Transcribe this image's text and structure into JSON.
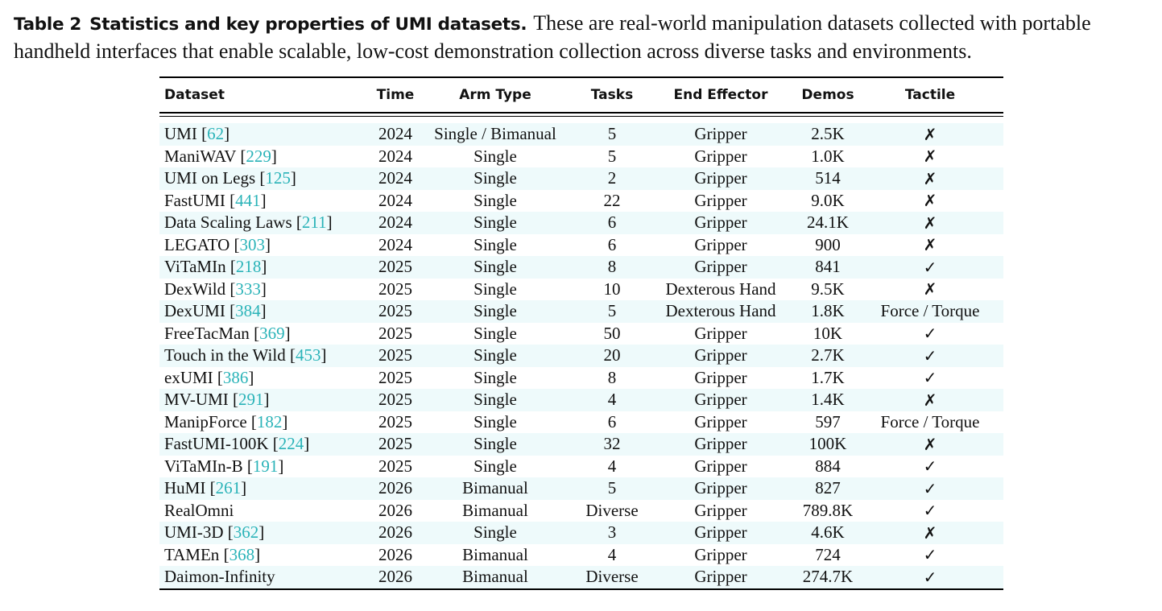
{
  "caption": {
    "label": "Table 2",
    "title": "Statistics and key properties of UMI datasets.",
    "text": "These are real-world manipulation datasets collected with portable handheld interfaces that enable scalable, low-cost demonstration collection across diverse tasks and environments."
  },
  "table": {
    "headers": {
      "dataset": "Dataset",
      "time": "Time",
      "arm_type": "Arm Type",
      "tasks": "Tasks",
      "end_effector": "End Effector",
      "demos": "Demos",
      "tactile": "Tactile"
    },
    "rows": [
      {
        "name": "UMI",
        "ref": "62",
        "time": "2024",
        "arm": "Single / Bimanual",
        "tasks": "5",
        "ee": "Gripper",
        "demos": "2.5K",
        "tactile": "✗"
      },
      {
        "name": "ManiWAV",
        "ref": "229",
        "time": "2024",
        "arm": "Single",
        "tasks": "5",
        "ee": "Gripper",
        "demos": "1.0K",
        "tactile": "✗"
      },
      {
        "name": "UMI on Legs",
        "ref": "125",
        "time": "2024",
        "arm": "Single",
        "tasks": "2",
        "ee": "Gripper",
        "demos": "514",
        "tactile": "✗"
      },
      {
        "name": "FastUMI",
        "ref": "441",
        "time": "2024",
        "arm": "Single",
        "tasks": "22",
        "ee": "Gripper",
        "demos": "9.0K",
        "tactile": "✗"
      },
      {
        "name": "Data Scaling Laws",
        "ref": "211",
        "time": "2024",
        "arm": "Single",
        "tasks": "6",
        "ee": "Gripper",
        "demos": "24.1K",
        "tactile": "✗"
      },
      {
        "name": "LEGATO",
        "ref": "303",
        "time": "2024",
        "arm": "Single",
        "tasks": "6",
        "ee": "Gripper",
        "demos": "900",
        "tactile": "✗"
      },
      {
        "name": "ViTaMIn",
        "ref": "218",
        "time": "2025",
        "arm": "Single",
        "tasks": "8",
        "ee": "Gripper",
        "demos": "841",
        "tactile": "✓"
      },
      {
        "name": "DexWild",
        "ref": "333",
        "time": "2025",
        "arm": "Single",
        "tasks": "10",
        "ee": "Dexterous Hand",
        "demos": "9.5K",
        "tactile": "✗"
      },
      {
        "name": "DexUMI",
        "ref": "384",
        "time": "2025",
        "arm": "Single",
        "tasks": "5",
        "ee": "Dexterous Hand",
        "demos": "1.8K",
        "tactile": "Force / Torque"
      },
      {
        "name": "FreeTacMan",
        "ref": "369",
        "time": "2025",
        "arm": "Single",
        "tasks": "50",
        "ee": "Gripper",
        "demos": "10K",
        "tactile": "✓"
      },
      {
        "name": "Touch in the Wild",
        "ref": "453",
        "time": "2025",
        "arm": "Single",
        "tasks": "20",
        "ee": "Gripper",
        "demos": "2.7K",
        "tactile": "✓"
      },
      {
        "name": "exUMI",
        "ref": "386",
        "time": "2025",
        "arm": "Single",
        "tasks": "8",
        "ee": "Gripper",
        "demos": "1.7K",
        "tactile": "✓"
      },
      {
        "name": "MV-UMI",
        "ref": "291",
        "time": "2025",
        "arm": "Single",
        "tasks": "4",
        "ee": "Gripper",
        "demos": "1.4K",
        "tactile": "✗"
      },
      {
        "name": "ManipForce",
        "ref": "182",
        "time": "2025",
        "arm": "Single",
        "tasks": "6",
        "ee": "Gripper",
        "demos": "597",
        "tactile": "Force / Torque"
      },
      {
        "name": "FastUMI-100K",
        "ref": "224",
        "time": "2025",
        "arm": "Single",
        "tasks": "32",
        "ee": "Gripper",
        "demos": "100K",
        "tactile": "✗"
      },
      {
        "name": "ViTaMIn-B",
        "ref": "191",
        "time": "2025",
        "arm": "Single",
        "tasks": "4",
        "ee": "Gripper",
        "demos": "884",
        "tactile": "✓"
      },
      {
        "name": "HuMI",
        "ref": "261",
        "time": "2026",
        "arm": "Bimanual",
        "tasks": "5",
        "ee": "Gripper",
        "demos": "827",
        "tactile": "✓"
      },
      {
        "name": "RealOmni",
        "ref": "",
        "time": "2026",
        "arm": "Bimanual",
        "tasks": "Diverse",
        "ee": "Gripper",
        "demos": "789.8K",
        "tactile": "✓"
      },
      {
        "name": "UMI-3D",
        "ref": "362",
        "time": "2026",
        "arm": "Single",
        "tasks": "3",
        "ee": "Gripper",
        "demos": "4.6K",
        "tactile": "✗"
      },
      {
        "name": "TAMEn",
        "ref": "368",
        "time": "2026",
        "arm": "Bimanual",
        "tasks": "4",
        "ee": "Gripper",
        "demos": "724",
        "tactile": "✓"
      },
      {
        "name": "Daimon-Infinity",
        "ref": "",
        "time": "2026",
        "arm": "Bimanual",
        "tasks": "Diverse",
        "ee": "Gripper",
        "demos": "274.7K",
        "tactile": "✓"
      }
    ]
  },
  "colors": {
    "citation": "#2ab3b8",
    "row_shade": "#eefafb"
  }
}
